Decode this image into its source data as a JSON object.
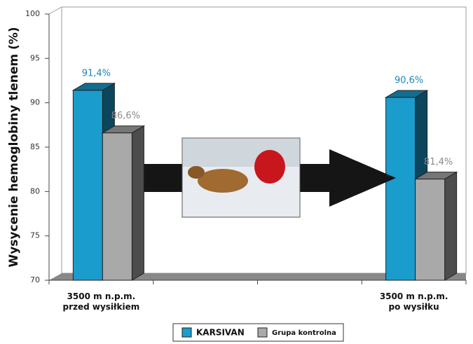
{
  "chart_data": {
    "type": "bar3d",
    "y_label": "Wysycenie hemoglobiny tlenem (%)",
    "categories": [
      "3500 m n.p.m.\nprzed wysiłkiem",
      null,
      null,
      "3500 m n.p.m.\npo wysiłku"
    ],
    "series": [
      {
        "name": "KARSIVAN",
        "color": "#1a9ccc",
        "values": [
          91.4,
          null,
          null,
          90.6
        ],
        "value_labels": [
          "91,4%",
          null,
          null,
          "90,6%"
        ]
      },
      {
        "name": "Grupa kontrolna",
        "color": "#a9a9a9",
        "values": [
          86.6,
          null,
          null,
          81.4
        ],
        "value_labels": [
          "86,6%",
          null,
          null,
          "81,4%"
        ]
      }
    ],
    "ylim": [
      70,
      100
    ],
    "yticks": [
      70,
      75,
      80,
      85,
      90,
      95,
      100
    ],
    "legend": "bottom"
  }
}
